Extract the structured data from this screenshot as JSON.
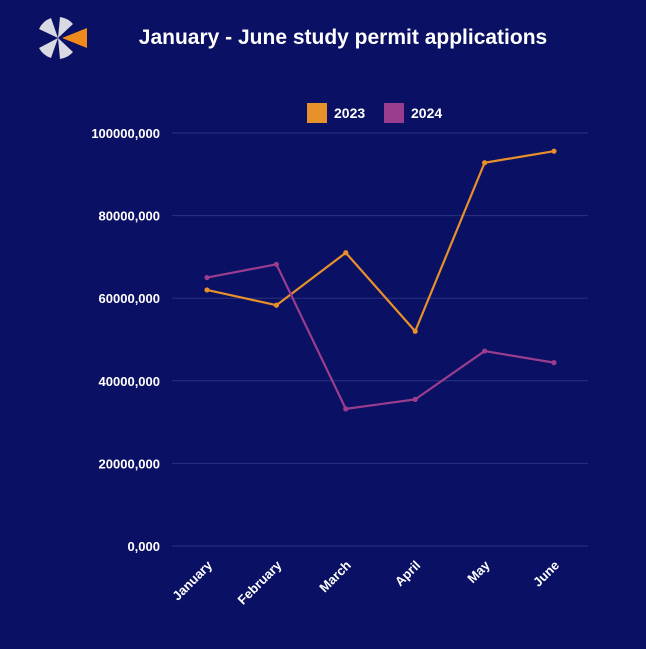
{
  "chart_data": {
    "type": "line",
    "title": "January - June study permit applications",
    "categories": [
      "January",
      "February",
      "March",
      "April",
      "May",
      "June"
    ],
    "series": [
      {
        "name": "2023",
        "color": "#e8902a",
        "values": [
          62000000,
          58300000,
          71000000,
          52000000,
          92800000,
          95600000
        ]
      },
      {
        "name": "2024",
        "color": "#9b3d8f",
        "values": [
          65000000,
          68200000,
          33200000,
          35500000,
          47200000,
          44400000
        ]
      }
    ],
    "ylim": [
      0,
      100000000
    ],
    "yticks": [
      {
        "value": 0,
        "label": "0,000"
      },
      {
        "value": 20000000,
        "label": "20000,000"
      },
      {
        "value": 40000000,
        "label": "40000,000"
      },
      {
        "value": 60000000,
        "label": "60000,000"
      },
      {
        "value": 80000000,
        "label": "80000,000"
      },
      {
        "value": 100000000,
        "label": "100000,000"
      }
    ],
    "grid": true,
    "legend_position": "top",
    "xlabel": "",
    "ylabel": ""
  },
  "logo": {
    "icon": "fan-logo-icon",
    "colors": [
      "#d9d9e3",
      "#f08a1c"
    ]
  },
  "background": "#0a1063"
}
